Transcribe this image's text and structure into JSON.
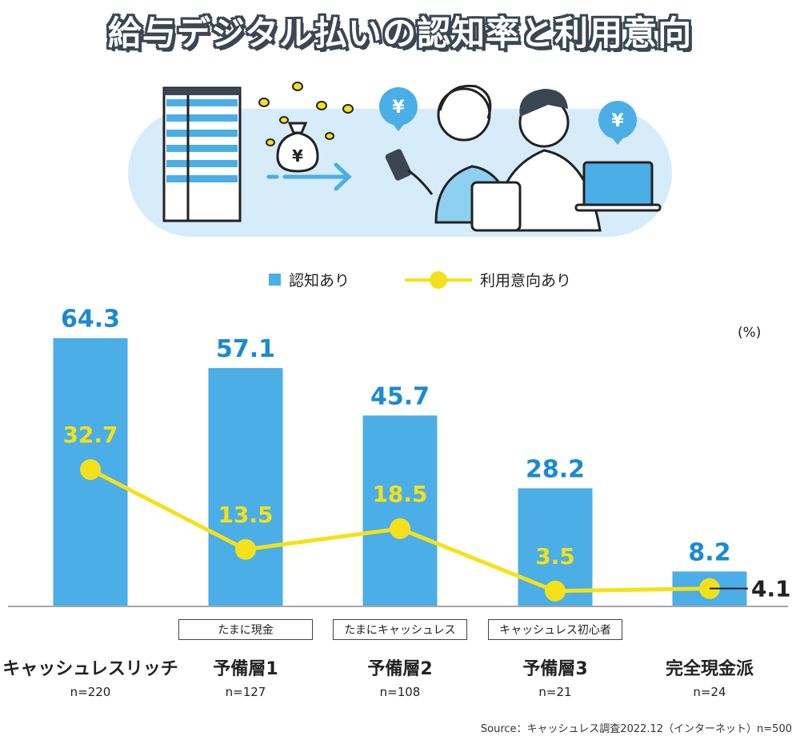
{
  "title": "給与デジタル払いの認知率と利用意向",
  "unit": "(%)",
  "legend": {
    "awareness": "認知あり",
    "intent": "利用意向あり"
  },
  "illustration": {
    "currency_symbol": "¥"
  },
  "colors": {
    "bar": "#4baee6",
    "bar_label": "#1a8ad4",
    "line": "#f5e11b",
    "axis": "#888888"
  },
  "categories": [
    {
      "name": "キャッシュレスリッチ",
      "tag": "",
      "n": "n=220"
    },
    {
      "name": "予備層1",
      "tag": "たまに現金",
      "n": "n=127"
    },
    {
      "name": "予備層2",
      "tag": "たまにキャッシュレス",
      "n": "n=108"
    },
    {
      "name": "予備層3",
      "tag": "キャッシュレス初心者",
      "n": "n=21"
    },
    {
      "name": "完全現金派",
      "tag": "",
      "n": "n=24"
    }
  ],
  "chart_data": {
    "type": "bar",
    "title": "給与デジタル払いの認知率と利用意向",
    "categories": [
      "キャッシュレスリッチ",
      "予備層1",
      "予備層2",
      "予備層3",
      "完全現金派"
    ],
    "series": [
      {
        "name": "認知あり",
        "type": "bar",
        "values": [
          64.3,
          57.1,
          45.7,
          28.2,
          8.2
        ]
      },
      {
        "name": "利用意向あり",
        "type": "line",
        "values": [
          32.7,
          13.5,
          18.5,
          3.5,
          4.1
        ]
      }
    ],
    "value_labels": {
      "awareness": [
        "64.3",
        "57.1",
        "45.7",
        "28.2",
        "8.2"
      ],
      "intent": [
        "32.7",
        "13.5",
        "18.5",
        "3.5",
        "4.1"
      ]
    },
    "ylabel": "(%)",
    "ylim": [
      0,
      70
    ]
  },
  "source": "Source：キャッシュレス調査2022.12（インターネット）n=500"
}
